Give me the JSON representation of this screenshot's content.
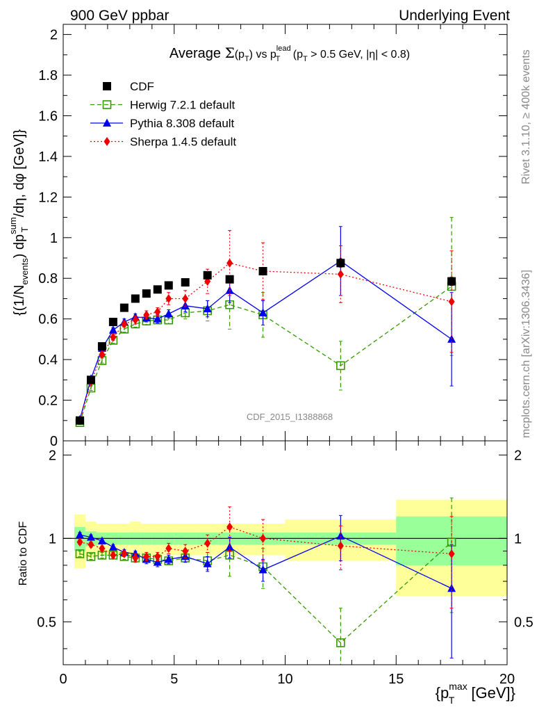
{
  "header": {
    "left": "900 GeV ppbar",
    "right": "Underlying Event"
  },
  "side_text": {
    "rivet": "Rivet 3.1.10, ≥ 400k events",
    "mcplots": "mcplots.cern.ch [arXiv:1306.3436]"
  },
  "analysis_label": "CDF_2015_I1388868",
  "chart_data": [
    {
      "type": "scatter",
      "title": "Average Σ(p_T) vs p_T^lead (p_T > 0.5 GeV, |η| < 0.8)",
      "title_parts": {
        "a": "Average ",
        "sigma": "Σ",
        "b": "(p",
        "b_sub": "T",
        "c": ") vs p",
        "c_sup": "lead",
        "c_sub": "T",
        "d": " (p",
        "d_sub": "T",
        "e": " > 0.5 GeV, |η| < 0.8)"
      },
      "ylabel": "{(1/N_events) dp_T^sum/dη, dφ [GeV]}",
      "ylabel_parts": {
        "a": "{(1/N",
        "a_sub": "events",
        "b": ") dp",
        "b_sup": "sum",
        "b_sub": "T",
        "c": "/dη, dφ [GeV]}"
      },
      "xlim": [
        0,
        20
      ],
      "ylim": [
        0,
        2.05
      ],
      "yticks": [
        "0",
        "0.2",
        "0.4",
        "0.6",
        "0.8",
        "1",
        "1.2",
        "1.4",
        "1.6",
        "1.8",
        "2"
      ],
      "legend_position": "top-left",
      "series": [
        {
          "name": "CDF",
          "color": "#000000",
          "marker": "square-filled",
          "x": [
            0.75,
            1.25,
            1.75,
            2.25,
            2.75,
            3.25,
            3.75,
            4.25,
            4.75,
            5.5,
            6.5,
            7.5,
            9.0,
            12.5,
            17.5
          ],
          "y": [
            0.1,
            0.3,
            0.465,
            0.585,
            0.655,
            0.7,
            0.725,
            0.745,
            0.765,
            0.78,
            0.815,
            0.795,
            0.835,
            0.875,
            0.785
          ],
          "err": [
            0.01,
            0.01,
            0.01,
            0.01,
            0.01,
            0.01,
            0.01,
            0.01,
            0.01,
            0.01,
            0.015,
            0.015,
            0.015,
            0.02,
            0.02
          ]
        },
        {
          "name": "Herwig 7.2.1 default",
          "color": "#339900",
          "marker": "square-open",
          "line": "dashed",
          "x": [
            0.75,
            1.25,
            1.75,
            2.25,
            2.75,
            3.25,
            3.75,
            4.25,
            4.75,
            5.5,
            6.5,
            7.5,
            9.0,
            12.5,
            17.5
          ],
          "y": [
            0.09,
            0.26,
            0.395,
            0.495,
            0.55,
            0.575,
            0.59,
            0.595,
            0.595,
            0.63,
            0.64,
            0.67,
            0.62,
            0.37,
            0.76
          ],
          "err": [
            0.01,
            0.012,
            0.012,
            0.015,
            0.015,
            0.015,
            0.02,
            0.02,
            0.02,
            0.03,
            0.05,
            0.12,
            0.11,
            0.12,
            0.34
          ]
        },
        {
          "name": "Pythia 8.308 default",
          "color": "#0000ee",
          "marker": "triangle-filled",
          "line": "solid",
          "x": [
            0.75,
            1.25,
            1.75,
            2.25,
            2.75,
            3.25,
            3.75,
            4.25,
            4.75,
            5.5,
            6.5,
            7.5,
            9.0,
            12.5,
            17.5
          ],
          "y": [
            0.105,
            0.305,
            0.455,
            0.545,
            0.585,
            0.61,
            0.605,
            0.6,
            0.625,
            0.665,
            0.65,
            0.74,
            0.63,
            0.885,
            0.5
          ],
          "err": [
            0.01,
            0.01,
            0.012,
            0.012,
            0.015,
            0.015,
            0.02,
            0.02,
            0.02,
            0.03,
            0.04,
            0.06,
            0.06,
            0.17,
            0.23
          ]
        },
        {
          "name": "Sherpa 1.4.5 default",
          "color": "#ee0000",
          "marker": "diamond-filled",
          "line": "dotted",
          "x": [
            0.75,
            1.25,
            1.75,
            2.25,
            2.75,
            3.25,
            3.75,
            4.25,
            4.75,
            5.5,
            6.5,
            7.5,
            9.0,
            12.5,
            17.5
          ],
          "y": [
            0.1,
            0.29,
            0.425,
            0.51,
            0.575,
            0.595,
            0.62,
            0.635,
            0.7,
            0.7,
            0.785,
            0.875,
            0.835,
            0.82,
            0.685
          ],
          "err": [
            0.01,
            0.01,
            0.012,
            0.015,
            0.015,
            0.02,
            0.02,
            0.02,
            0.03,
            0.04,
            0.06,
            0.16,
            0.14,
            0.14,
            0.25
          ]
        }
      ]
    },
    {
      "type": "scatter",
      "title": "",
      "ylabel": "Ratio to CDF",
      "xlabel": "{p_T^max [GeV]}",
      "xlabel_parts": {
        "a": "{p",
        "a_sup": "max",
        "a_sub": "T",
        "b": " [GeV]}"
      },
      "xlim": [
        0,
        20
      ],
      "ylim": [
        0.35,
        2.25
      ],
      "xticks": [
        "0",
        "5",
        "10",
        "15",
        "20"
      ],
      "yticks": [
        "0.5",
        "1",
        "2"
      ],
      "reference_line": 1,
      "bands": {
        "bins": [
          [
            0.5,
            1.0
          ],
          [
            1.0,
            1.5
          ],
          [
            1.5,
            2.0
          ],
          [
            2.0,
            2.5
          ],
          [
            2.5,
            3.0
          ],
          [
            3.0,
            3.5
          ],
          [
            3.5,
            4.0
          ],
          [
            4.0,
            4.5
          ],
          [
            4.5,
            5.0
          ],
          [
            5.0,
            6.0
          ],
          [
            6.0,
            7.0
          ],
          [
            7.0,
            8.0
          ],
          [
            8.0,
            10.0
          ],
          [
            10.0,
            15.0
          ],
          [
            15.0,
            20.0
          ]
        ],
        "stat_halfwidth": [
          0.1,
          0.06,
          0.05,
          0.05,
          0.05,
          0.05,
          0.05,
          0.05,
          0.05,
          0.05,
          0.05,
          0.05,
          0.05,
          0.05,
          0.2
        ],
        "total_halfwidth": [
          0.22,
          0.15,
          0.13,
          0.13,
          0.13,
          0.15,
          0.13,
          0.13,
          0.13,
          0.13,
          0.13,
          0.13,
          0.13,
          0.17,
          0.38
        ],
        "stat_color": "#99ff99",
        "total_color": "#ffff99"
      },
      "series": [
        {
          "name": "Herwig 7.2.1 default",
          "color": "#339900",
          "marker": "square-open",
          "line": "dashed",
          "x": [
            0.75,
            1.25,
            1.75,
            2.25,
            2.75,
            3.25,
            3.75,
            4.25,
            4.75,
            5.5,
            6.5,
            7.5,
            9.0,
            12.5,
            17.5
          ],
          "y": [
            0.88,
            0.86,
            0.87,
            0.87,
            0.86,
            0.85,
            0.85,
            0.84,
            0.83,
            0.85,
            0.83,
            0.87,
            0.79,
            0.42,
            0.97
          ],
          "err": [
            0.02,
            0.02,
            0.02,
            0.02,
            0.02,
            0.02,
            0.02,
            0.02,
            0.02,
            0.03,
            0.06,
            0.14,
            0.13,
            0.14,
            0.43
          ]
        },
        {
          "name": "Pythia 8.308 default",
          "color": "#0000ee",
          "marker": "triangle-filled",
          "line": "solid",
          "x": [
            0.75,
            1.25,
            1.75,
            2.25,
            2.75,
            3.25,
            3.75,
            4.25,
            4.75,
            5.5,
            6.5,
            7.5,
            9.0,
            12.5,
            17.5
          ],
          "y": [
            1.03,
            1.01,
            0.98,
            0.93,
            0.89,
            0.88,
            0.84,
            0.82,
            0.84,
            0.86,
            0.81,
            0.93,
            0.77,
            1.02,
            0.66
          ],
          "err": [
            0.02,
            0.02,
            0.02,
            0.02,
            0.02,
            0.02,
            0.03,
            0.03,
            0.03,
            0.04,
            0.05,
            0.08,
            0.07,
            0.19,
            0.29
          ]
        },
        {
          "name": "Sherpa 1.4.5 default",
          "color": "#ee0000",
          "marker": "diamond-filled",
          "line": "dotted",
          "x": [
            0.75,
            1.25,
            1.75,
            2.25,
            2.75,
            3.25,
            3.75,
            4.25,
            4.75,
            5.5,
            6.5,
            7.5,
            9.0,
            12.5,
            17.5
          ],
          "y": [
            0.97,
            0.95,
            0.92,
            0.87,
            0.88,
            0.85,
            0.86,
            0.86,
            0.92,
            0.9,
            0.96,
            1.1,
            1.0,
            0.94,
            0.88
          ],
          "err": [
            0.02,
            0.02,
            0.02,
            0.02,
            0.02,
            0.03,
            0.03,
            0.03,
            0.04,
            0.05,
            0.07,
            0.2,
            0.17,
            0.17,
            0.32
          ]
        }
      ]
    }
  ]
}
